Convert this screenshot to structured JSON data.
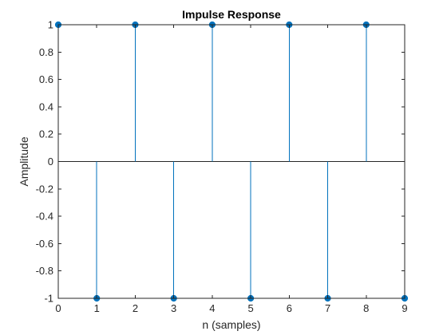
{
  "chart_data": {
    "type": "stem",
    "title": "Impulse Response",
    "xlabel": "n (samples)",
    "ylabel": "Amplitude",
    "xlim": [
      0,
      9
    ],
    "ylim": [
      -1,
      1
    ],
    "x_ticks": [
      0,
      1,
      2,
      3,
      4,
      5,
      6,
      7,
      8,
      9
    ],
    "y_ticks": [
      -1,
      -0.8,
      -0.6,
      -0.4,
      -0.2,
      0,
      0.2,
      0.4,
      0.6,
      0.8,
      1
    ],
    "y_tick_labels": [
      "-1",
      "-0.8",
      "-0.6",
      "-0.4",
      "-0.2",
      "0",
      "0.2",
      "0.4",
      "0.6",
      "0.8",
      "1"
    ],
    "grid": false,
    "baseline": 0,
    "series": [
      {
        "x": [
          0,
          1,
          2,
          3,
          4,
          5,
          6,
          7,
          8,
          9
        ],
        "y": [
          1,
          -1,
          1,
          -1,
          1,
          -1,
          1,
          -1,
          1,
          -1
        ],
        "color": "#0072BD"
      }
    ]
  }
}
